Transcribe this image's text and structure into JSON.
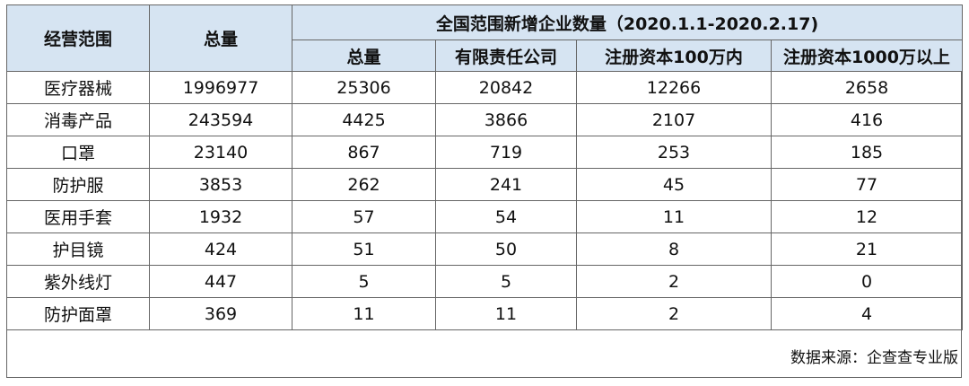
{
  "table": {
    "header": {
      "col_scope": "经营范围",
      "col_total": "总量",
      "group_title": "全国范围新增企业数量（2020.1.1-2020.2.17)",
      "sub_columns": [
        "总量",
        "有限责任公司",
        "注册资本100万内",
        "注册资本1000万以上"
      ]
    },
    "rows": [
      [
        "医疗器械",
        "1996977",
        "25306",
        "20842",
        "12266",
        "2658"
      ],
      [
        "消毒产品",
        "243594",
        "4425",
        "3866",
        "2107",
        "416"
      ],
      [
        "口罩",
        "23140",
        "867",
        "719",
        "253",
        "185"
      ],
      [
        "防护服",
        "3853",
        "262",
        "241",
        "45",
        "77"
      ],
      [
        "医用手套",
        "1932",
        "57",
        "54",
        "11",
        "12"
      ],
      [
        "护目镜",
        "424",
        "51",
        "50",
        "8",
        "21"
      ],
      [
        "紫外线灯",
        "447",
        "5",
        "5",
        "2",
        "0"
      ],
      [
        "防护面罩",
        "369",
        "11",
        "11",
        "2",
        "4"
      ]
    ],
    "source": "数据来源：企查查专业版"
  },
  "colors": {
    "header_bg": "#d6e4f2",
    "border": "#666666"
  }
}
